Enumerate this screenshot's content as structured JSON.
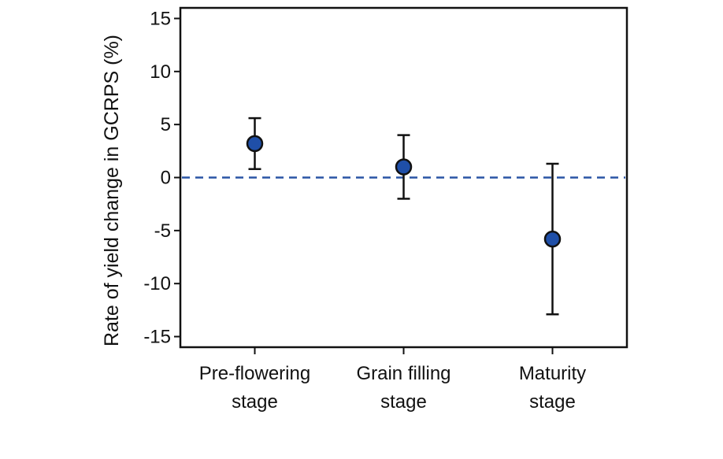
{
  "chart_data": {
    "type": "scatter",
    "ylabel": "Rate of yield change in GCRPS (%)",
    "ylim": [
      -16,
      16
    ],
    "yticks": [
      15,
      10,
      5,
      0,
      -5,
      -10,
      -15
    ],
    "ytick_labels": [
      "15",
      "10",
      "5",
      "0",
      "-5",
      "-10",
      "-15"
    ],
    "grid": false,
    "categories": [
      [
        "Pre-flowering",
        "stage"
      ],
      [
        "Grain filling",
        "stage"
      ],
      [
        "Maturity",
        "stage"
      ]
    ],
    "points": [
      {
        "y": 3.2,
        "err_low": 0.8,
        "err_high": 5.6
      },
      {
        "y": 1.0,
        "err_low": -2.0,
        "err_high": 4.0
      },
      {
        "y": -5.8,
        "err_low": -12.9,
        "err_high": 1.3
      }
    ],
    "reference_line": {
      "y": 0,
      "style": "dashed"
    },
    "colors": {
      "marker_fill": "#1f4fa8",
      "marker_edge": "#111111",
      "reference_line": "#2a55a5",
      "axis": "#111111"
    }
  }
}
